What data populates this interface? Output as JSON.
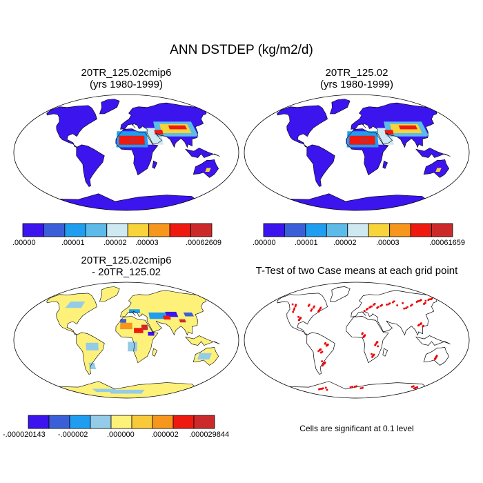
{
  "main_title": "ANN DSTDEP (kg/m2/d)",
  "colors": {
    "ocean": "#ffffff",
    "coast": "#000000",
    "ttest": "#ee0000"
  },
  "panels": [
    {
      "id": "case1",
      "title_line1": "20TR_125.02cmip6",
      "title_line2": "(yrs 1980-1999)",
      "palette": [
        "#3c14ee",
        "#3a5fd8",
        "#1f9ef0",
        "#5cbbe8",
        "#cfe9f2",
        "#f8d43a",
        "#f6961c",
        "#ee1a10",
        "#cc2a2a"
      ],
      "colorbar_labels": [
        ".00000",
        ".00001",
        ".00002",
        ".00003",
        ".00062609"
      ]
    },
    {
      "id": "case2",
      "title_line1": "20TR_125.02",
      "title_line2": "(yrs 1980-1999)",
      "palette": [
        "#3c14ee",
        "#3a5fd8",
        "#1f9ef0",
        "#5cbbe8",
        "#cfe9f2",
        "#f8d43a",
        "#f6961c",
        "#ee1a10",
        "#cc2a2a"
      ],
      "colorbar_labels": [
        ".00000",
        ".00001",
        ".00002",
        ".00003",
        ".00061659"
      ]
    },
    {
      "id": "diff",
      "title_line1": "20TR_125.02cmip6",
      "title_line2": "- 20TR_125.02",
      "palette": [
        "#3c14ee",
        "#3a5fd8",
        "#1f9ef0",
        "#94cbe8",
        "#fdf17a",
        "#f8ca3a",
        "#f6961c",
        "#ee1a10",
        "#cc2a2a"
      ],
      "colorbar_labels": [
        "-.000020143",
        "-.000002",
        ".000000",
        ".000002",
        ".000029844"
      ]
    },
    {
      "id": "ttest",
      "title_line1": "T-Test of two Case means at each grid point",
      "note": "Cells are significant at 0.1 level"
    }
  ]
}
